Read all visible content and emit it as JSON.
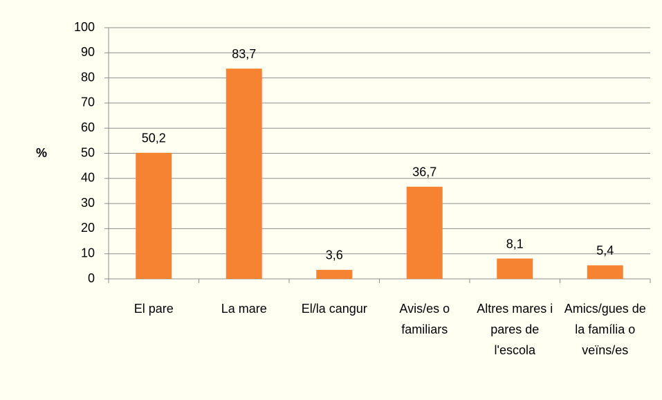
{
  "chart_data": {
    "type": "bar",
    "y_label": "%",
    "categories": [
      "El pare",
      "La mare",
      "El/la cangur",
      "Avis/es o familiars",
      "Altres mares i pares de l'escola",
      "Amics/gues de la família o veïns/es"
    ],
    "values": [
      50.2,
      83.7,
      3.6,
      36.7,
      8.1,
      5.4
    ],
    "value_labels": [
      "50,2",
      "83,7",
      "3,6",
      "36,7",
      "8,1",
      "5,4"
    ],
    "color": "#f68331",
    "ylim": [
      0,
      100
    ],
    "yticks": [
      0,
      10,
      20,
      30,
      40,
      50,
      60,
      70,
      80,
      90,
      100
    ],
    "grid": true
  }
}
